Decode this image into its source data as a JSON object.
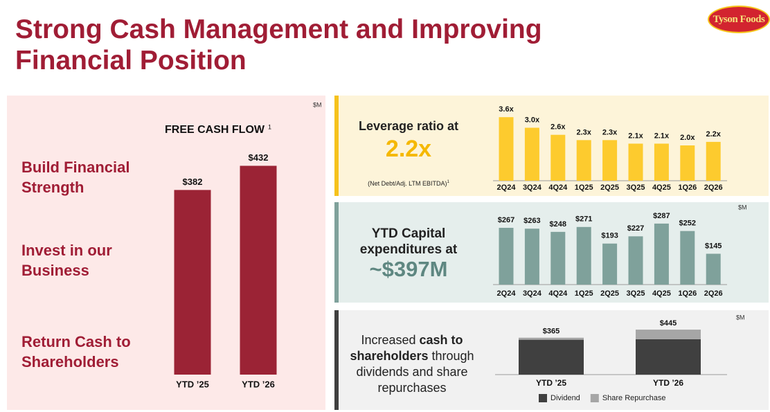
{
  "header": {
    "title_lines": [
      "Strong Cash Management and Improving",
      "Financial Position"
    ],
    "logo": "Tyson Foods"
  },
  "pillars": [
    [
      "Build Financial",
      "Strength"
    ],
    [
      "Invest in our",
      "Business"
    ],
    [
      "Return Cash to",
      "Shareholders"
    ]
  ],
  "leverage_text": {
    "lines": [
      "Leverage ratio at"
    ],
    "highlight": "2.2x",
    "footnote": "(Net Debt/Adj. LTM EBITDA)",
    "footnote_mark": "1"
  },
  "capex_text": {
    "lines": [
      "YTD Capital",
      "expenditures at"
    ],
    "highlight": "~$397M"
  },
  "shareholder_text": {
    "lines": [
      [
        "Increased ",
        "cash to"
      ],
      [
        "shareholders",
        " through"
      ],
      [
        "dividends and share"
      ],
      [
        "repurchases"
      ]
    ]
  },
  "chart_data": [
    {
      "type": "bar",
      "title": "FREE CASH FLOW",
      "title_note": "1",
      "unit": "$M",
      "categories": [
        "YTD ’25",
        "YTD ’26"
      ],
      "values": [
        382,
        432
      ],
      "value_labels": [
        "$382",
        "$432"
      ],
      "color": "#9b2335"
    },
    {
      "type": "bar",
      "categories": [
        "2Q24",
        "3Q24",
        "4Q24",
        "1Q25",
        "2Q25",
        "3Q25",
        "4Q25",
        "1Q26",
        "2Q26"
      ],
      "values": [
        3.6,
        3.0,
        2.6,
        2.3,
        2.3,
        2.1,
        2.1,
        2.0,
        2.2
      ],
      "value_labels": [
        "3.6x",
        "3.0x",
        "2.6x",
        "2.3x",
        "2.3x",
        "2.1x",
        "2.1x",
        "2.0x",
        "2.2x"
      ],
      "color": "#fdcb2e"
    },
    {
      "type": "bar",
      "unit": "$M",
      "categories": [
        "2Q24",
        "3Q24",
        "4Q24",
        "1Q25",
        "2Q25",
        "3Q25",
        "4Q25",
        "1Q26",
        "2Q26"
      ],
      "values": [
        267,
        263,
        248,
        271,
        193,
        227,
        287,
        252,
        145
      ],
      "value_labels": [
        "$267",
        "$263",
        "$248",
        "$271",
        "$193",
        "$227",
        "$287",
        "$252",
        "$145"
      ],
      "color": "#7fa19b"
    },
    {
      "type": "stacked_bar",
      "unit": "$M",
      "categories": [
        "YTD ’25",
        "YTD ’26"
      ],
      "series": [
        {
          "name": "Dividend",
          "color": "#404040",
          "values": [
            345,
            350
          ]
        },
        {
          "name": "Share Repurchase",
          "color": "#a6a6a6",
          "values": [
            20,
            95
          ]
        }
      ],
      "totals": [
        365,
        445
      ],
      "total_labels": [
        "$365",
        "$445"
      ]
    }
  ]
}
